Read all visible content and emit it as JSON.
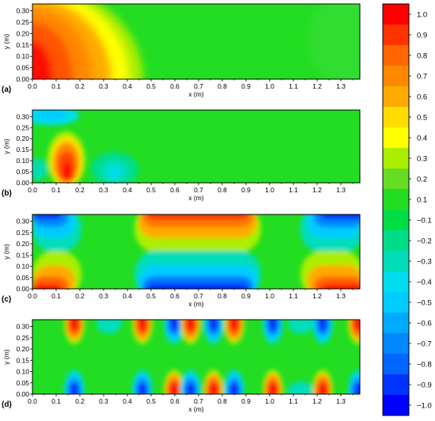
{
  "chart_data": {
    "type": "heatmap",
    "colorbar": {
      "ticks": [
        "1.0",
        "0.9",
        "0.8",
        "0.7",
        "0.6",
        "0.5",
        "0.4",
        "0.3",
        "0.2",
        "0.1",
        "−0.1",
        "−0.2",
        "−0.3",
        "−0.4",
        "−0.5",
        "−0.6",
        "−0.7",
        "−0.8",
        "−0.9",
        "−1.0"
      ],
      "colors": [
        "#ff0000",
        "#ff3300",
        "#ff6600",
        "#ff8800",
        "#ffaa00",
        "#ffdd00",
        "#ffff00",
        "#aaee00",
        "#66dd22",
        "#22dd22",
        "#00dd44",
        "#00dd88",
        "#00ddbb",
        "#00ddee",
        "#00ccff",
        "#00aaff",
        "#0088ff",
        "#0066ff",
        "#0033ff",
        "#0000ff"
      ]
    },
    "panels": [
      {
        "label": "(a)",
        "xlabel": "x (m)",
        "ylabel": "y (m)",
        "xlim": [
          0,
          1.38
        ],
        "ylim": [
          0,
          0.33
        ],
        "xticks": [
          "0.0",
          "0.1",
          "0.2",
          "0.3",
          "0.4",
          "0.5",
          "0.6",
          "0.7",
          "0.8",
          "0.9",
          "1.0",
          "1.1",
          "1.2",
          "1.3"
        ],
        "yticks": [
          "0.00",
          "0.05",
          "0.10",
          "0.15",
          "0.20",
          "0.25",
          "0.30"
        ]
      },
      {
        "label": "(b)",
        "xlabel": "x (m)",
        "ylabel": "y (m)",
        "xlim": [
          0,
          1.38
        ],
        "ylim": [
          0,
          0.33
        ],
        "xticks": [
          "0.0",
          "0.1",
          "0.2",
          "0.3",
          "0.4",
          "0.5",
          "0.6",
          "0.7",
          "0.8",
          "0.9",
          "1.0",
          "1.1",
          "1.2",
          "1.3"
        ],
        "yticks": [
          "0.00",
          "0.05",
          "0.10",
          "0.15",
          "0.20",
          "0.25",
          "0.30"
        ]
      },
      {
        "label": "(c)",
        "xlabel": "x (m)",
        "ylabel": "y (m)",
        "xlim": [
          0,
          1.38
        ],
        "ylim": [
          0,
          0.33
        ],
        "xticks": [
          "0.0",
          "0.1",
          "0.2",
          "0.3",
          "0.4",
          "0.5",
          "0.6",
          "0.7",
          "0.8",
          "0.9",
          "1.0",
          "1.1",
          "1.2",
          "1.3"
        ],
        "yticks": [
          "0.00",
          "0.05",
          "0.10",
          "0.15",
          "0.20",
          "0.25",
          "0.30"
        ]
      },
      {
        "label": "(d)",
        "xlabel": "x (m)",
        "ylabel": "y (m)",
        "xlim": [
          0,
          1.38
        ],
        "ylim": [
          0,
          0.33
        ],
        "xticks": [
          "0.0",
          "0.1",
          "0.2",
          "0.3",
          "0.4",
          "0.5",
          "0.6",
          "0.7",
          "0.8",
          "0.9",
          "1.0",
          "1.1",
          "1.2",
          "1.3"
        ],
        "yticks": [
          "0.00",
          "0.05",
          "0.10",
          "0.15",
          "0.20",
          "0.25",
          "0.30"
        ]
      }
    ]
  }
}
